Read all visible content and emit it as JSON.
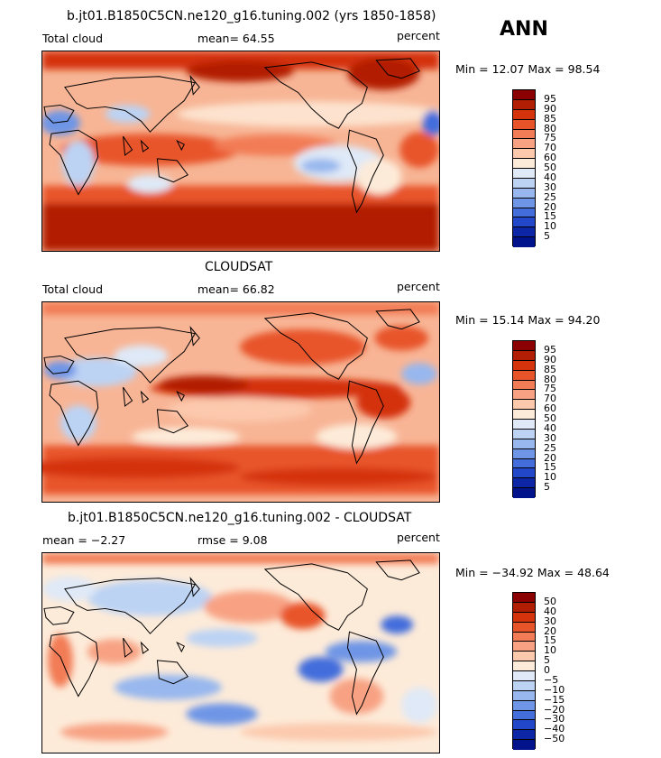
{
  "season_label": "ANN",
  "panels": [
    {
      "title": "b.jt01.B1850C5CN.ne120_g16.tuning.002 (yrs 1850-1858)",
      "left_label": "Total cloud",
      "center_label": "mean=  64.55",
      "units": "percent",
      "range_text": "Min =  12.07 Max =  98.54",
      "colorbar_levels": [
        "95",
        "90",
        "85",
        "80",
        "75",
        "70",
        "60",
        "50",
        "40",
        "30",
        "25",
        "20",
        "15",
        "10",
        "5"
      ],
      "colorbar_colors": [
        "#8b0000",
        "#b21e03",
        "#d4330c",
        "#e8542a",
        "#f27c55",
        "#f8a283",
        "#fcc9ad",
        "#fdebd9",
        "#dfe9f7",
        "#bcd3f4",
        "#97b7ee",
        "#6e95e6",
        "#426ddb",
        "#2247c9",
        "#0c26a6",
        "#00138a"
      ]
    },
    {
      "title": "CLOUDSAT",
      "left_label": "Total cloud",
      "center_label": "mean=  66.82",
      "units": "percent",
      "range_text": "Min =  15.14 Max =  94.20",
      "colorbar_levels": [
        "95",
        "90",
        "85",
        "80",
        "75",
        "70",
        "60",
        "50",
        "40",
        "30",
        "25",
        "20",
        "15",
        "10",
        "5"
      ],
      "colorbar_colors": [
        "#8b0000",
        "#b21e03",
        "#d4330c",
        "#e8542a",
        "#f27c55",
        "#f8a283",
        "#fcc9ad",
        "#fdebd9",
        "#dfe9f7",
        "#bcd3f4",
        "#97b7ee",
        "#6e95e6",
        "#426ddb",
        "#2247c9",
        "#0c26a6",
        "#00138a"
      ]
    },
    {
      "title": "b.jt01.B1850C5CN.ne120_g16.tuning.002 - CLOUDSAT",
      "left_label": "mean =  −2.27",
      "center_label": "rmse =   9.08",
      "units": "percent",
      "range_text": "Min = −34.92 Max =  48.64",
      "colorbar_levels": [
        "50",
        "40",
        "30",
        "20",
        "15",
        "10",
        "5",
        "0",
        "−5",
        "−10",
        "−15",
        "−20",
        "−30",
        "−40",
        "−50"
      ],
      "colorbar_colors": [
        "#8b0000",
        "#b21e03",
        "#d4330c",
        "#e8542a",
        "#f27c55",
        "#f8a283",
        "#fcc9ad",
        "#fdebd9",
        "#dfe9f7",
        "#bcd3f4",
        "#97b7ee",
        "#6e95e6",
        "#426ddb",
        "#2247c9",
        "#0c26a6",
        "#00138a"
      ]
    }
  ]
}
